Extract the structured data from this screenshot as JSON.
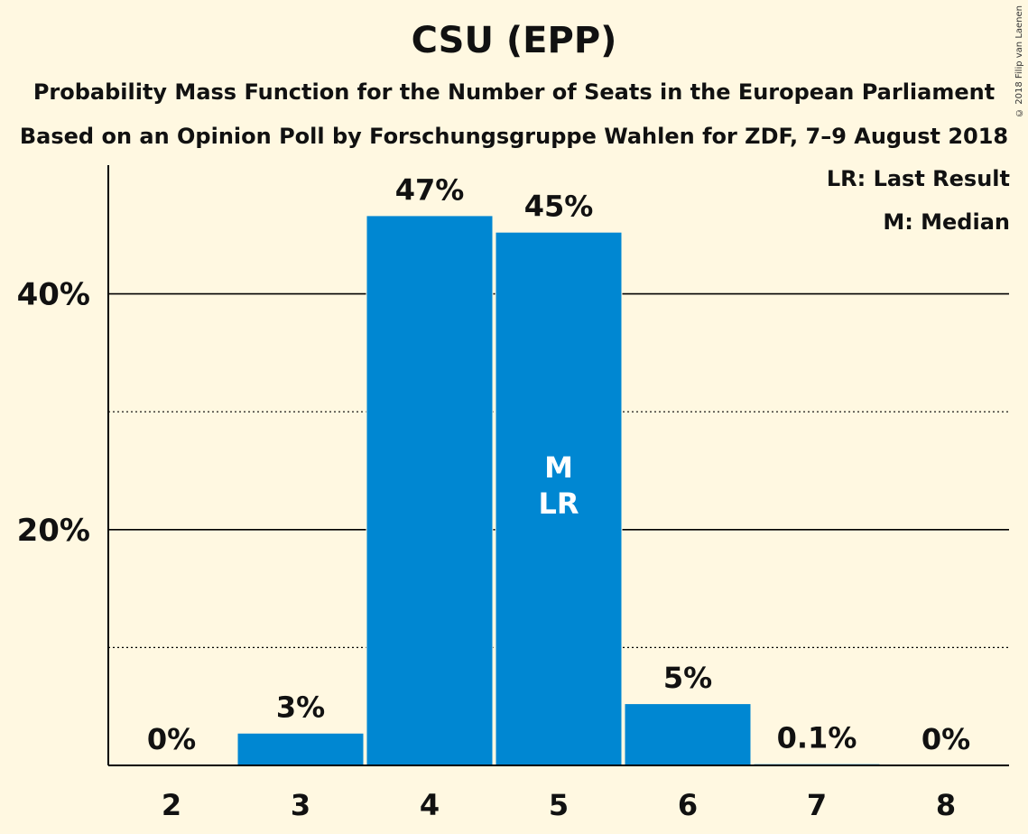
{
  "copyright": "© 2018 Filip van Laenen",
  "chart_data": {
    "type": "bar",
    "title": "CSU (EPP)",
    "subtitle": [
      "Probability Mass Function for the Number of Seats in the European Parliament",
      "Based on an Opinion Poll by Forschungsgruppe Wahlen for ZDF, 7–9 August 2018"
    ],
    "xlabel": "",
    "ylabel": "",
    "categories": [
      "2",
      "3",
      "4",
      "5",
      "6",
      "7",
      "8"
    ],
    "values": [
      0,
      2.7,
      46.6,
      45.2,
      5.2,
      0.1,
      0
    ],
    "value_labels": [
      "0%",
      "3%",
      "47%",
      "45%",
      "5%",
      "0.1%",
      "0%"
    ],
    "ylim": [
      0,
      50
    ],
    "yticks": [
      {
        "value": 20,
        "label": "20%"
      },
      {
        "value": 40,
        "label": "40%"
      }
    ],
    "gridlines": {
      "solid": [
        20,
        40
      ],
      "dotted": [
        10,
        30
      ]
    },
    "bar_annotations": [
      {
        "category": "5",
        "lines": [
          "M",
          "LR"
        ]
      }
    ],
    "legend": {
      "placement": "top-right",
      "entries": [
        "LR: Last Result",
        "M: Median"
      ]
    },
    "colors": {
      "bar": "#0087d2",
      "background": "#fff8e1",
      "axis": "#000000",
      "annotation_text": "#ffffff"
    }
  }
}
